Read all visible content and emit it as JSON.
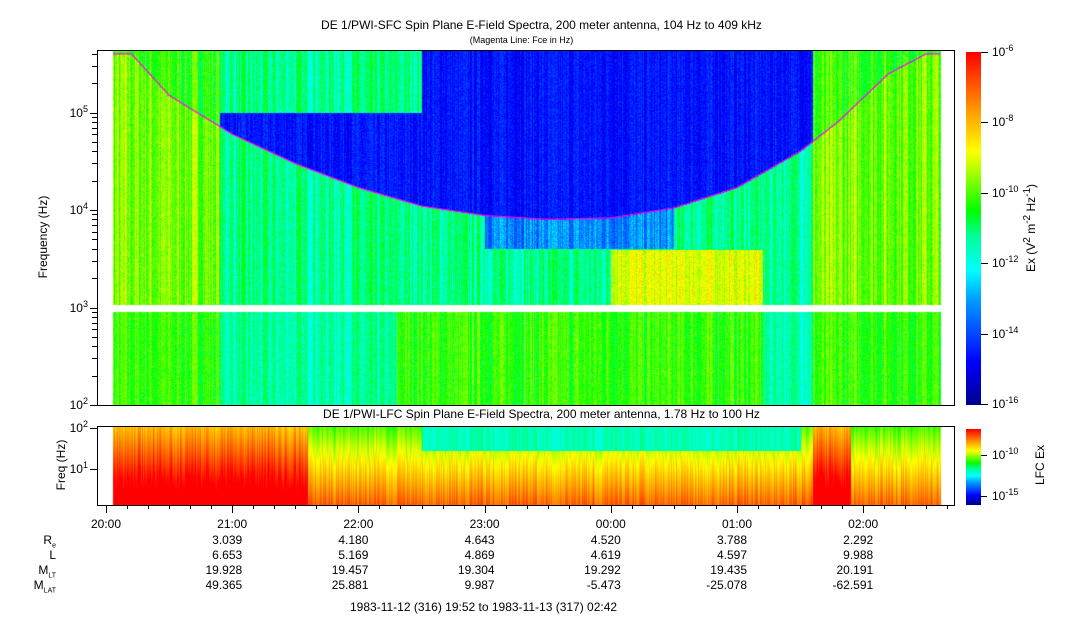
{
  "chart_data": [
    {
      "type": "heatmap",
      "title": "DE 1/PWI-SFC  Spin Plane E-Field Spectra, 200 meter antenna, 104 Hz to 409 kHz",
      "subtitle": "(Magenta Line: Fce in Hz)",
      "ylabel": "Frequency (Hz)",
      "yscale": "log",
      "ylim": [
        100,
        409000
      ],
      "yticks": [
        {
          "label": "10",
          "exp": "2"
        },
        {
          "label": "10",
          "exp": "3"
        },
        {
          "label": "10",
          "exp": "4"
        },
        {
          "label": "10",
          "exp": "5"
        }
      ],
      "colorbar": {
        "label": "Ex (V",
        "label_rest": [
          " m",
          " Hz",
          ")"
        ],
        "label_exps": [
          "2",
          "-2",
          "-1"
        ],
        "range_log10": [
          -16,
          -6
        ],
        "ticks": [
          {
            "label": "10",
            "exp": "-6"
          },
          {
            "label": "10",
            "exp": "-8"
          },
          {
            "label": "10",
            "exp": "-10"
          },
          {
            "label": "10",
            "exp": "-12"
          },
          {
            "label": "10",
            "exp": "-14"
          },
          {
            "label": "10",
            "exp": "-16"
          }
        ]
      },
      "fce_line": {
        "color": "#ff00ff",
        "time_hours": [
          20.2,
          20.5,
          21,
          21.5,
          22,
          22.5,
          23,
          23.5,
          24,
          24.5,
          25,
          25.5,
          25.8,
          26.2,
          26.5
        ],
        "fce_hz": [
          400000,
          150000,
          60000,
          30000,
          17000,
          11000,
          8800,
          8000,
          8300,
          10500,
          17000,
          40000,
          80000,
          250000,
          400000
        ]
      }
    },
    {
      "type": "heatmap",
      "title": "DE 1/PWI-LFC  Spin Plane E-Field Spectra, 200 meter antenna, 1.78 Hz to 100 Hz",
      "ylabel": "Freq (Hz)",
      "yscale": "log",
      "ylim": [
        1.78,
        100
      ],
      "yticks": [
        {
          "label": "10",
          "exp": "2"
        },
        {
          "label": "10",
          "exp": "1"
        }
      ],
      "colorbar": {
        "label": "LFC Ex",
        "ticks": [
          {
            "label": "10",
            "exp": "-10"
          },
          {
            "label": "10",
            "exp": "-15"
          }
        ]
      }
    }
  ],
  "time_axis": {
    "ticks": [
      "20:00",
      "21:00",
      "22:00",
      "23:00",
      "00:00",
      "01:00",
      "02:00"
    ]
  },
  "ephemeris": {
    "rows": [
      {
        "label": "R",
        "sub": "e",
        "values": [
          "3.039",
          "4.180",
          "4.643",
          "4.520",
          "3.788",
          "2.292"
        ]
      },
      {
        "label": "L",
        "sub": "",
        "values": [
          "6.653",
          "5.169",
          "4.869",
          "4.619",
          "4.597",
          "9.988"
        ]
      },
      {
        "label": "M",
        "sub": "LT",
        "values": [
          "19.928",
          "19.457",
          "19.304",
          "19.292",
          "19.435",
          "20.191"
        ]
      },
      {
        "label": "M",
        "sub": "LAT",
        "values": [
          "49.365",
          "25.881",
          "9.987",
          "-5.473",
          "-25.078",
          "-62.591"
        ]
      }
    ]
  },
  "time_range": "1983-11-12 (316) 19:52 to 1983-11-13 (317) 02:42"
}
